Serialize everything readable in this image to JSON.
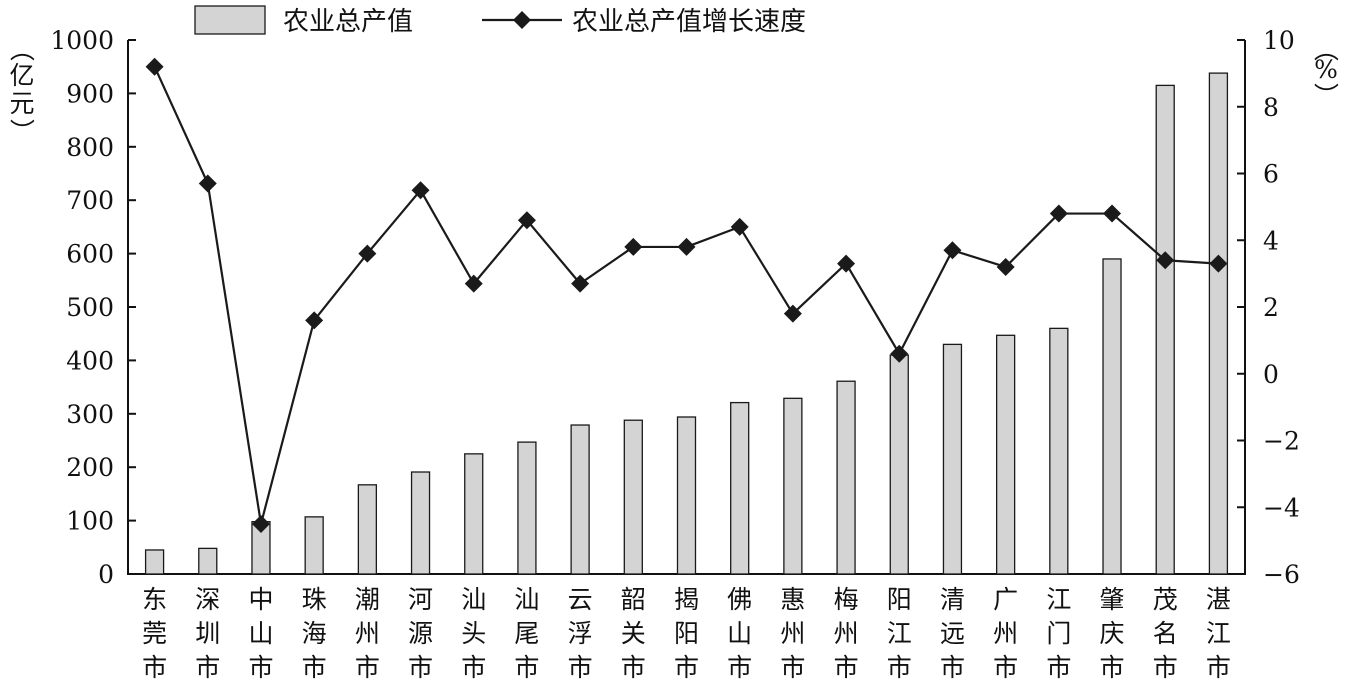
{
  "chart_data": {
    "type": "bar+line",
    "categories": [
      "东莞市",
      "深圳市",
      "中山市",
      "珠海市",
      "潮州市",
      "河源市",
      "汕头市",
      "汕尾市",
      "云浮市",
      "韶关市",
      "揭阳市",
      "佛山市",
      "惠州市",
      "梅州市",
      "阳江市",
      "清远市",
      "广州市",
      "江门市",
      "肇庆市",
      "茂名市",
      "湛江市"
    ],
    "series": [
      {
        "name": "农业总产值",
        "type": "bar",
        "axis": "left",
        "values": [
          45,
          48,
          98,
          107,
          167,
          191,
          225,
          247,
          279,
          288,
          294,
          321,
          329,
          361,
          410,
          430,
          447,
          460,
          590,
          915,
          938
        ]
      },
      {
        "name": "农业总产值增长速度",
        "type": "line",
        "axis": "right",
        "values": [
          9.2,
          5.7,
          -4.5,
          1.6,
          3.6,
          5.5,
          2.7,
          4.6,
          2.7,
          3.8,
          3.8,
          4.4,
          1.8,
          3.3,
          0.6,
          3.7,
          3.2,
          4.8,
          4.8,
          3.4,
          3.3
        ]
      }
    ],
    "y_left": {
      "label_chars": [
        "（",
        "亿",
        "元",
        "）"
      ],
      "ylim": [
        0,
        1000
      ],
      "ticks": [
        0,
        100,
        200,
        300,
        400,
        500,
        600,
        700,
        800,
        900,
        1000
      ]
    },
    "y_right": {
      "label_chars": [
        "（",
        "%",
        "）"
      ],
      "ylim": [
        -6,
        10
      ],
      "ticks": [
        -6,
        -4,
        -2,
        0,
        2,
        4,
        6,
        8,
        10
      ],
      "tick_text": [
        "−6",
        "−4",
        "−2",
        "0",
        "2",
        "4",
        "6",
        "8",
        "10"
      ]
    },
    "legend": {
      "position": "top",
      "bar_label": "农业总产值",
      "line_label": "农业总产值增长速度"
    },
    "grid": false,
    "colors": {
      "bar_fill": "#d4d4d4",
      "bar_stroke": "#1a1a1a",
      "line": "#1a1a1a",
      "marker": "#1a1a1a",
      "axis": "#111111"
    }
  }
}
